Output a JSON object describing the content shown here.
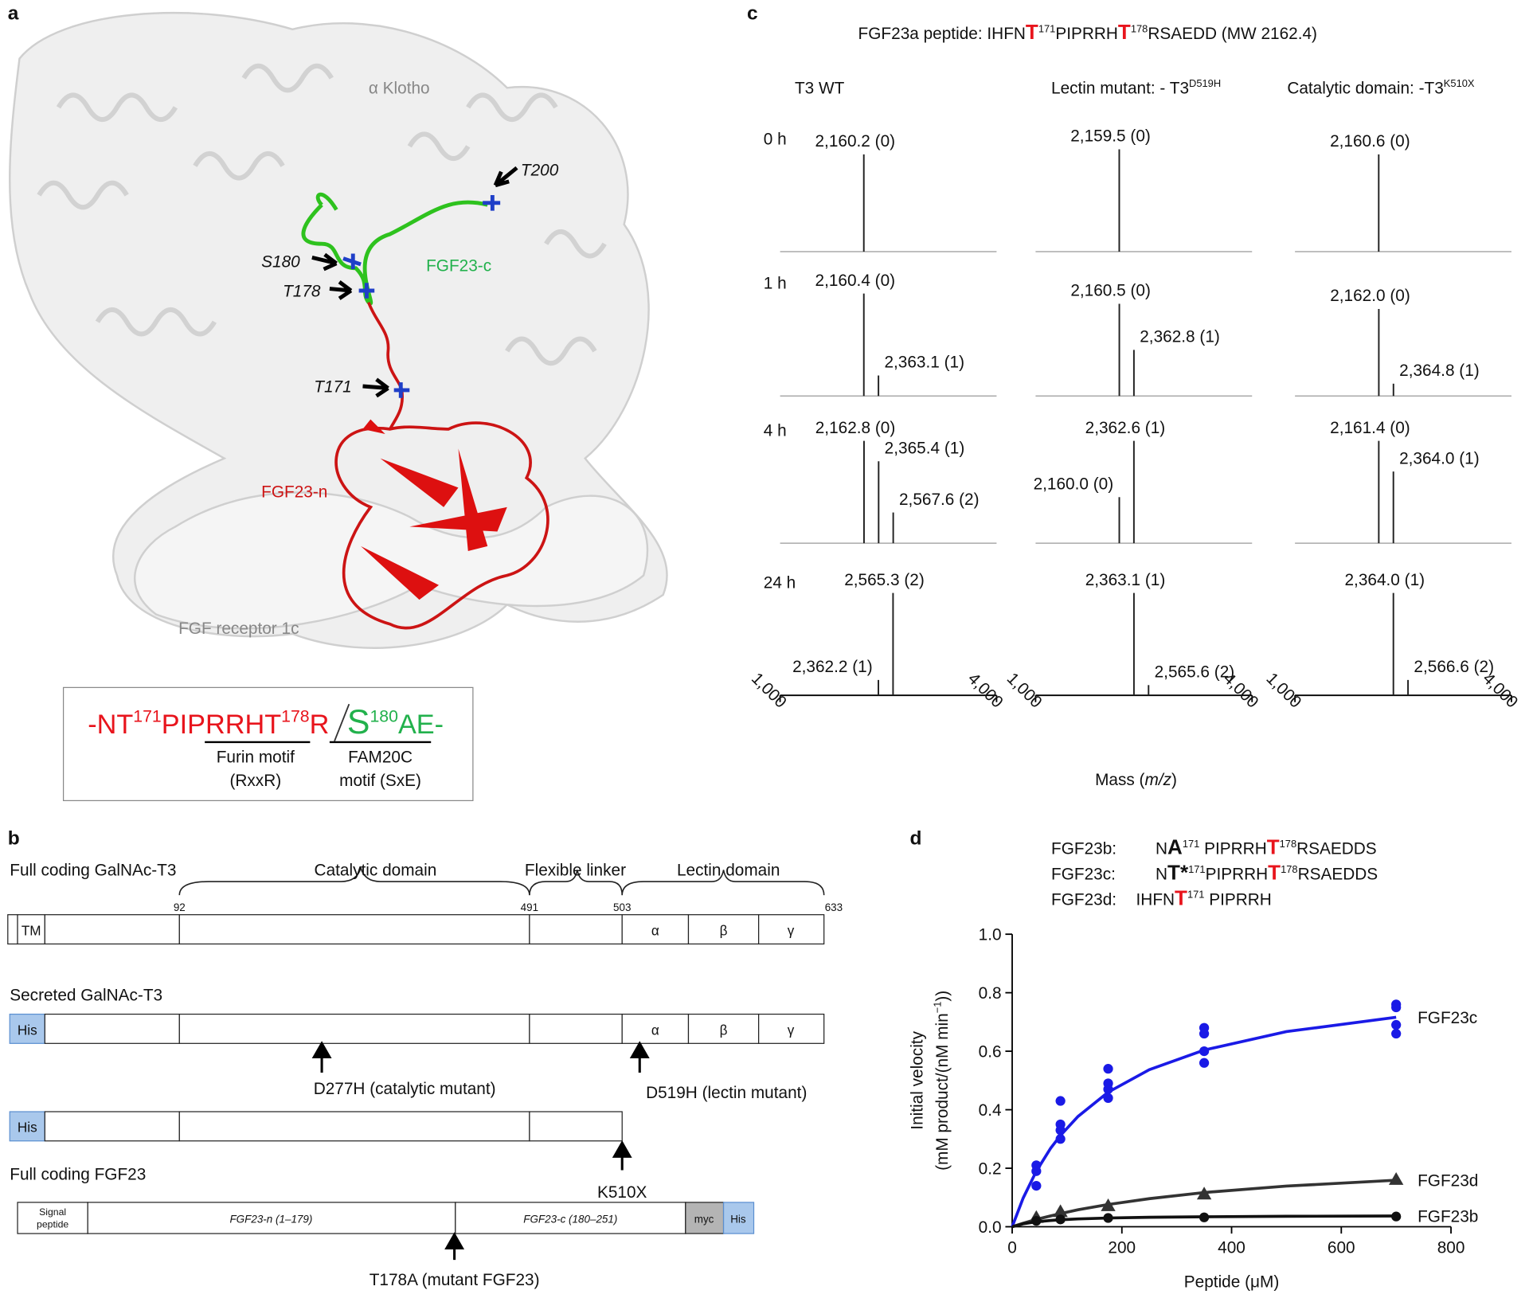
{
  "panel_a": {
    "letter": "a",
    "klotho": "α Klotho",
    "t200": "T200",
    "s180": "S180",
    "t178": "T178",
    "t171": "T171",
    "fgf23c": "FGF23-c",
    "fgf23n": "FGF23-n",
    "receptor": "FGF receptor 1c",
    "seq_left": [
      {
        "t": "-NT",
        "s": "red"
      },
      {
        "t": "171",
        "s": "sup red"
      },
      {
        "t": "PIPRRHT",
        "s": "red"
      },
      {
        "t": "178",
        "s": "sup red"
      },
      {
        "t": "R",
        "s": "red"
      }
    ],
    "seq_right": [
      {
        "t": "S",
        "s": "green big"
      },
      {
        "t": "180",
        "s": "sup green"
      },
      {
        "t": "AE-",
        "s": "green"
      }
    ],
    "furin": [
      "Furin motif",
      "(RxxR)"
    ],
    "fam20c": [
      "FAM20C",
      "motif (SxE)"
    ]
  },
  "panel_b": {
    "letter": "b",
    "full_t3": "Full coding GalNAc-T3",
    "catalytic": "Catalytic domain",
    "linker": "Flexible linker",
    "lectin": "Lectin domain",
    "positions": [
      "92",
      "491",
      "503",
      "633"
    ],
    "tm": "TM",
    "subdomains": [
      "α",
      "β",
      "γ"
    ],
    "secreted": "Secreted GalNAc-T3",
    "his": "His",
    "d277h": "D277H (catalytic mutant)",
    "d519h": "D519H (lectin mutant)",
    "k510x": "K510X",
    "full_fgf23": "Full coding FGF23",
    "signal": [
      "Signal",
      "peptide"
    ],
    "fgf23n": "FGF23-n (1–179)",
    "fgf23c": "FGF23-c (180–251)",
    "myc": "myc",
    "t178a": "T178A (mutant FGF23)"
  },
  "panel_c": {
    "letter": "c",
    "title": [
      {
        "t": "FGF23a peptide: IHFN"
      },
      {
        "t": "T",
        "s": "red bold big"
      },
      {
        "t": "171",
        "s": "sup"
      },
      {
        "t": "PIPRRH"
      },
      {
        "t": "T",
        "s": "red bold big"
      },
      {
        "t": "178",
        "s": "sup"
      },
      {
        "t": "RSAEDD (MW 2162.4)"
      }
    ],
    "columns": [
      [
        {
          "t": "T3 WT"
        }
      ],
      [
        {
          "t": "Lectin mutant: - T3"
        },
        {
          "t": "D519H",
          "s": "sup"
        }
      ],
      [
        {
          "t": "Catalytic domain: -T3"
        },
        {
          "t": "K510X",
          "s": "sup"
        }
      ]
    ],
    "xlim": [
      1000,
      4000
    ],
    "xticks": [
      {
        "value": 1000,
        "label": "1,000"
      },
      {
        "value": 4000,
        "label": "4,000"
      }
    ],
    "xlabel": [
      {
        "t": "Mass ("
      },
      {
        "t": "m/z",
        "s": "italic"
      },
      {
        "t": ")"
      }
    ],
    "rows": [
      {
        "label": "0 h",
        "panels": [
          [
            {
              "mass": 2160.2,
              "intensity": 0.95,
              "label": "2,160.2 (0)"
            }
          ],
          [
            {
              "mass": 2159.5,
              "intensity": 1.0,
              "label": "2,159.5 (0)"
            }
          ],
          [
            {
              "mass": 2160.6,
              "intensity": 0.95,
              "label": "2,160.6 (0)"
            }
          ]
        ]
      },
      {
        "label": "1 h",
        "panels": [
          [
            {
              "mass": 2160.4,
              "intensity": 1.0,
              "label": "2,160.4 (0)"
            },
            {
              "mass": 2363.1,
              "intensity": 0.2,
              "label": "2,363.1 (1)"
            }
          ],
          [
            {
              "mass": 2160.5,
              "intensity": 0.9,
              "label": "2,160.5 (0)"
            },
            {
              "mass": 2362.8,
              "intensity": 0.45,
              "label": "2,362.8 (1)"
            }
          ],
          [
            {
              "mass": 2162.0,
              "intensity": 0.85,
              "label": "2,162.0 (0)"
            },
            {
              "mass": 2364.8,
              "intensity": 0.12,
              "label": "2,364.8 (1)"
            }
          ]
        ]
      },
      {
        "label": "4 h",
        "panels": [
          [
            {
              "mass": 2162.8,
              "intensity": 1.0,
              "label": "2,162.8 (0)"
            },
            {
              "mass": 2365.4,
              "intensity": 0.8,
              "label": "2,365.4 (1)"
            },
            {
              "mass": 2567.6,
              "intensity": 0.3,
              "label": "2,567.6 (2)"
            }
          ],
          [
            {
              "mass": 2160.0,
              "intensity": 0.45,
              "label": "2,160.0 (0)"
            },
            {
              "mass": 2362.6,
              "intensity": 1.0,
              "label": "2,362.6 (1)"
            }
          ],
          [
            {
              "mass": 2161.4,
              "intensity": 1.0,
              "label": "2,161.4 (0)"
            },
            {
              "mass": 2364.0,
              "intensity": 0.7,
              "label": "2,364.0 (1)"
            }
          ]
        ]
      },
      {
        "label": "24 h",
        "panels": [
          [
            {
              "mass": 2362.2,
              "intensity": 0.15,
              "label": "2,362.2 (1)"
            },
            {
              "mass": 2565.3,
              "intensity": 1.0,
              "label": "2,565.3 (2)"
            }
          ],
          [
            {
              "mass": 2363.1,
              "intensity": 1.0,
              "label": "2,363.1 (1)"
            },
            {
              "mass": 2565.6,
              "intensity": 0.1,
              "label": "2,565.6 (2)"
            }
          ],
          [
            {
              "mass": 2364.0,
              "intensity": 1.0,
              "label": "2,364.0 (1)"
            },
            {
              "mass": 2566.6,
              "intensity": 0.15,
              "label": "2,566.6 (2)"
            }
          ]
        ]
      }
    ]
  },
  "panel_d": {
    "letter": "d",
    "peptides": [
      {
        "name": "FGF23b:",
        "color": "#111111",
        "seq": [
          {
            "t": "N"
          },
          {
            "t": "A",
            "s": "bold big"
          },
          {
            "t": "171",
            "s": "sup"
          },
          {
            "t": " PIPRRH"
          },
          {
            "t": "T",
            "s": "red bold big"
          },
          {
            "t": "178",
            "s": "sup"
          },
          {
            "t": "RSAEDDS"
          }
        ]
      },
      {
        "name": "FGF23c:",
        "color": "#1a1ae6",
        "seq": [
          {
            "t": "N"
          },
          {
            "t": "T*",
            "s": "bold big"
          },
          {
            "t": "171",
            "s": "sup"
          },
          {
            "t": "PIPRRH"
          },
          {
            "t": "T",
            "s": "red bold big"
          },
          {
            "t": "178",
            "s": "sup"
          },
          {
            "t": "RSAEDDS"
          }
        ]
      },
      {
        "name": "FGF23d:",
        "color": "#111111",
        "seq": [
          {
            "t": "IHFN"
          },
          {
            "t": "T",
            "s": "red bold big"
          },
          {
            "t": "171",
            "s": "sup"
          },
          {
            "t": " PIPRRH"
          }
        ]
      }
    ]
  },
  "chart_data": {
    "type": "scatter",
    "xlabel": "Peptide (μM)",
    "ylabel": [
      [
        {
          "t": "Initial velocity"
        }
      ],
      [
        {
          "t": "(mM product/(nM min"
        },
        {
          "t": "−1",
          "s": "sup"
        },
        {
          "t": "))"
        }
      ]
    ],
    "xlim": [
      0,
      800
    ],
    "xticks": [
      0,
      200,
      400,
      600,
      800
    ],
    "ylim": [
      0,
      1
    ],
    "yticks": [
      {
        "value": 0,
        "label": "0.0"
      },
      0.2,
      0.4,
      0.6,
      0.8,
      {
        "value": 1,
        "label": "1.0"
      }
    ],
    "series": [
      {
        "name": "FGF23c",
        "color": "#1a1ae6",
        "marker": "circle",
        "x": [
          44,
          44,
          44,
          88,
          88,
          88,
          88,
          175,
          175,
          175,
          175,
          350,
          350,
          350,
          350,
          700,
          700,
          700,
          700
        ],
        "values": [
          0.21,
          0.19,
          0.14,
          0.43,
          0.35,
          0.33,
          0.3,
          0.54,
          0.49,
          0.47,
          0.44,
          0.68,
          0.66,
          0.6,
          0.56,
          0.76,
          0.75,
          0.69,
          0.66
        ],
        "fit": {
          "x": [
            0,
            20,
            44,
            70,
            88,
            120,
            175,
            250,
            350,
            500,
            700
          ],
          "values": [
            0,
            0.098,
            0.19,
            0.268,
            0.312,
            0.377,
            0.46,
            0.537,
            0.604,
            0.667,
            0.716
          ]
        }
      },
      {
        "name": "FGF23d",
        "color": "#333333",
        "marker": "triangle",
        "x": [
          44,
          88,
          175,
          350,
          700
        ],
        "values": [
          0.03,
          0.05,
          0.07,
          0.11,
          0.16
        ],
        "fit": {
          "x": [
            0,
            20,
            44,
            70,
            88,
            120,
            175,
            250,
            350,
            500,
            700
          ],
          "values": [
            0,
            0.012,
            0.025,
            0.037,
            0.045,
            0.058,
            0.076,
            0.096,
            0.117,
            0.139,
            0.159
          ]
        }
      },
      {
        "name": "FGF23b",
        "color": "#111111",
        "marker": "circle",
        "x": [
          44,
          88,
          175,
          350,
          700
        ],
        "values": [
          0.02,
          0.025,
          0.03,
          0.032,
          0.035
        ],
        "fit": {
          "x": [
            0,
            20,
            44,
            70,
            88,
            120,
            175,
            250,
            350,
            500,
            700
          ],
          "values": [
            0,
            0.01,
            0.017,
            0.0215,
            0.0238,
            0.0267,
            0.0298,
            0.0323,
            0.0341,
            0.0357,
            0.0368
          ]
        }
      }
    ]
  }
}
